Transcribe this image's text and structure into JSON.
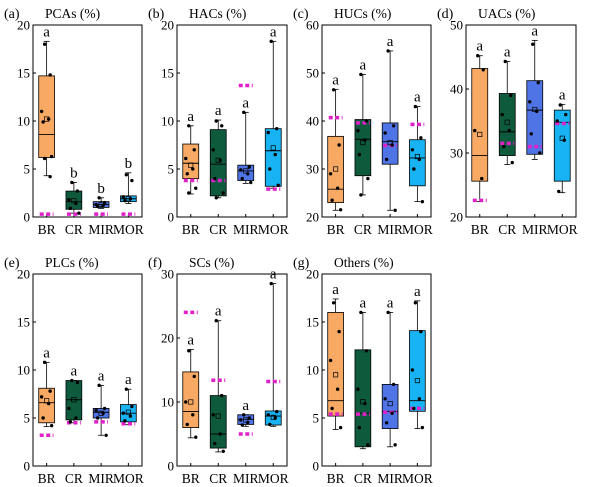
{
  "figure": {
    "title": "Box plots of seven hydrocarbon and carbon-species percentages across four groups"
  },
  "colors": {
    "BR": "#f8a964",
    "CR": "#0d5a3c",
    "MIR": "#4f74e6",
    "MOR": "#18b3f3",
    "mean_line": "#e020c8"
  },
  "chart_data": [
    {
      "type": "box",
      "panel_label": "(a)",
      "title": "PCAs (%)",
      "categories": [
        "BR",
        "CR",
        "MIR",
        "MOR"
      ],
      "ylim": [
        0,
        20
      ],
      "yticks": [
        0,
        5,
        10,
        15,
        20
      ],
      "boxes": [
        {
          "q1": 6.2,
          "median": 8.6,
          "q3": 14.7,
          "whisker_low": 4.3,
          "whisker_high": 18.3,
          "mean": 10.2,
          "mean_line": 0.3,
          "points": [
            18.0,
            14.8,
            11.0,
            10.2,
            9.9,
            6.3,
            6.1,
            4.2
          ],
          "letter": "a"
        },
        {
          "q1": 0.8,
          "median": 1.6,
          "q3": 2.7,
          "whisker_low": 0.4,
          "whisker_high": 3.6,
          "mean": 1.7,
          "mean_line": 0.3,
          "points": [
            3.6,
            2.7,
            1.8,
            1.4,
            0.9,
            0.4
          ],
          "letter": "b"
        },
        {
          "q1": 1.0,
          "median": 1.3,
          "q3": 1.6,
          "whisker_low": 0.9,
          "whisker_high": 2.0,
          "mean": 1.3,
          "mean_line": 0.3,
          "points": [
            2.0,
            1.5,
            1.3,
            1.2,
            1.1
          ],
          "letter": "b"
        },
        {
          "q1": 1.6,
          "median": 1.9,
          "q3": 2.2,
          "whisker_low": 1.4,
          "whisker_high": 4.6,
          "mean": 1.9,
          "mean_line": 0.3,
          "points": [
            4.4,
            3.8,
            2.1,
            1.9,
            1.7
          ],
          "letter": "b"
        }
      ]
    },
    {
      "type": "box",
      "panel_label": "(b)",
      "title": "HACs (%)",
      "categories": [
        "BR",
        "CR",
        "MIR",
        "MOR"
      ],
      "ylim": [
        0,
        20
      ],
      "yticks": [
        0,
        5,
        10,
        15,
        20
      ],
      "boxes": [
        {
          "q1": 4.0,
          "median": 5.6,
          "q3": 7.6,
          "whisker_low": 2.4,
          "whisker_high": 9.5,
          "mean": 5.4,
          "mean_line": 3.8,
          "points": [
            9.5,
            7.0,
            6.1,
            5.0,
            4.5,
            3.0,
            2.5
          ],
          "letter": "a"
        },
        {
          "q1": 2.2,
          "median": 5.5,
          "q3": 9.1,
          "whisker_low": 2.0,
          "whisker_high": 10.1,
          "mean": 5.9,
          "mean_line": 3.8,
          "points": [
            10.0,
            9.5,
            7.0,
            5.9,
            4.0,
            2.5,
            2.0
          ],
          "letter": "a"
        },
        {
          "q1": 3.8,
          "median": 4.8,
          "q3": 5.4,
          "whisker_low": 3.5,
          "whisker_high": 10.9,
          "mean": 4.8,
          "mean_line": 13.7,
          "points": [
            10.9,
            5.2,
            4.9,
            4.5,
            4.0,
            3.6
          ],
          "letter": "a"
        },
        {
          "q1": 3.2,
          "median": 6.9,
          "q3": 9.2,
          "whisker_low": 3.0,
          "whisker_high": 18.3,
          "mean": 7.2,
          "mean_line": 2.9,
          "points": [
            18.3,
            9.2,
            8.8,
            6.5,
            5.0,
            3.3
          ],
          "letter": "a"
        }
      ]
    },
    {
      "type": "box",
      "panel_label": "(c)",
      "title": "HUCs (%)",
      "categories": [
        "BR",
        "CR",
        "MIR",
        "MOR"
      ],
      "ylim": [
        20,
        60
      ],
      "yticks": [
        20,
        30,
        40,
        50,
        60
      ],
      "boxes": [
        {
          "q1": 23.0,
          "median": 25.8,
          "q3": 36.8,
          "whisker_low": 21.4,
          "whisker_high": 46.6,
          "mean": 30.0,
          "mean_line": 40.7,
          "points": [
            46.5,
            35.0,
            29.0,
            26.0,
            23.5,
            21.5
          ],
          "letter": "a"
        },
        {
          "q1": 28.6,
          "median": 36.2,
          "q3": 40.3,
          "whisker_low": 24.6,
          "whisker_high": 49.7,
          "mean": 35.5,
          "mean_line": 39.6,
          "points": [
            49.7,
            40.0,
            38.0,
            36.0,
            33.0,
            28.0,
            24.6
          ],
          "letter": "a"
        },
        {
          "q1": 31.0,
          "median": 35.7,
          "q3": 39.6,
          "whisker_low": 21.4,
          "whisker_high": 54.6,
          "mean": 35.5,
          "mean_line": 34.9,
          "points": [
            54.6,
            39.0,
            37.5,
            35.0,
            32.0,
            21.4
          ],
          "letter": "a"
        },
        {
          "q1": 26.5,
          "median": 32.3,
          "q3": 36.1,
          "whisker_low": 23.2,
          "whisker_high": 43.0,
          "mean": 32.6,
          "mean_line": 39.3,
          "points": [
            43.0,
            36.5,
            34.0,
            32.0,
            30.0,
            23.2
          ],
          "letter": "a"
        }
      ]
    },
    {
      "type": "box",
      "panel_label": "(d)",
      "title": "UACs (%)",
      "categories": [
        "BR",
        "CR",
        "MIR",
        "MOR"
      ],
      "ylim": [
        20,
        50
      ],
      "yticks": [
        20,
        30,
        40,
        50
      ],
      "boxes": [
        {
          "q1": 25.6,
          "median": 29.6,
          "q3": 43.2,
          "whisker_low": 22.4,
          "whisker_high": 45.2,
          "mean": 32.9,
          "mean_line": 22.6,
          "points": [
            45.2,
            43.0,
            33.5,
            26.0
          ],
          "letter": "a"
        },
        {
          "q1": 29.6,
          "median": 33.3,
          "q3": 39.3,
          "whisker_low": 28.2,
          "whisker_high": 44.3,
          "mean": 34.8,
          "mean_line": 31.5,
          "points": [
            44.3,
            39.0,
            36.0,
            33.5,
            31.0,
            28.5
          ],
          "letter": "a"
        },
        {
          "q1": 29.8,
          "median": 36.7,
          "q3": 41.3,
          "whisker_low": 29.0,
          "whisker_high": 47.6,
          "mean": 36.8,
          "mean_line": 31.0,
          "points": [
            47.0,
            41.0,
            38.0,
            36.5,
            33.0,
            30.0
          ],
          "letter": "a"
        },
        {
          "q1": 25.6,
          "median": 34.8,
          "q3": 36.7,
          "whisker_low": 23.8,
          "whisker_high": 37.6,
          "mean": 32.3,
          "mean_line": 34.6,
          "points": [
            37.5,
            36.0,
            35.0,
            32.0,
            24.0
          ],
          "letter": "a"
        }
      ]
    },
    {
      "type": "box",
      "panel_label": "(e)",
      "title": "PLCs (%)",
      "categories": [
        "BR",
        "CR",
        "MIR",
        "MOR"
      ],
      "ylim": [
        0,
        20
      ],
      "yticks": [
        0,
        5,
        10,
        15,
        20
      ],
      "boxes": [
        {
          "q1": 4.5,
          "median": 6.6,
          "q3": 8.1,
          "whisker_low": 4.1,
          "whisker_high": 10.8,
          "mean": 6.8,
          "mean_line": 3.2,
          "points": [
            10.8,
            7.8,
            7.2,
            6.5,
            5.0,
            4.2
          ],
          "letter": "a"
        },
        {
          "q1": 4.8,
          "median": 6.9,
          "q3": 8.9,
          "whisker_low": 4.5,
          "whisker_high": 8.9,
          "mean": 6.9,
          "mean_line": 4.5,
          "points": [
            8.9,
            8.7,
            6.0,
            5.0,
            4.6
          ],
          "letter": "a"
        },
        {
          "q1": 5.0,
          "median": 5.6,
          "q3": 6.0,
          "whisker_low": 3.2,
          "whisker_high": 8.4,
          "mean": 5.5,
          "mean_line": 4.6,
          "points": [
            8.4,
            6.0,
            5.8,
            5.5,
            5.0,
            3.2
          ],
          "letter": "a"
        },
        {
          "q1": 4.6,
          "median": 5.5,
          "q3": 6.4,
          "whisker_low": 4.3,
          "whisker_high": 8.0,
          "mean": 5.6,
          "mean_line": 4.4,
          "points": [
            8.0,
            6.2,
            5.5,
            5.2,
            4.7
          ],
          "letter": "a"
        }
      ]
    },
    {
      "type": "box",
      "panel_label": "(f)",
      "title": "SCs (%)",
      "categories": [
        "BR",
        "CR",
        "MIR",
        "MOR"
      ],
      "ylim": [
        0,
        30
      ],
      "yticks": [
        0,
        10,
        20,
        30
      ],
      "boxes": [
        {
          "q1": 6.0,
          "median": 8.5,
          "q3": 14.7,
          "whisker_low": 4.4,
          "whisker_high": 18.2,
          "mean": 10.0,
          "mean_line": 24.0,
          "points": [
            18.0,
            14.0,
            10.0,
            8.0,
            6.5,
            4.5
          ],
          "letter": "a"
        },
        {
          "q1": 2.8,
          "median": 5.0,
          "q3": 11.0,
          "whisker_low": 2.2,
          "whisker_high": 22.7,
          "mean": 7.8,
          "mean_line": 13.4,
          "points": [
            22.7,
            11.0,
            8.0,
            5.0,
            3.5,
            2.3
          ],
          "letter": "a"
        },
        {
          "q1": 6.5,
          "median": 7.3,
          "q3": 8.0,
          "whisker_low": 6.2,
          "whisker_high": 8.0,
          "mean": 7.2,
          "mean_line": 5.0,
          "points": [
            8.0,
            7.5,
            7.2,
            6.8,
            6.4
          ],
          "letter": "a"
        },
        {
          "q1": 6.4,
          "median": 7.8,
          "q3": 8.6,
          "whisker_low": 6.2,
          "whisker_high": 28.5,
          "mean": 7.6,
          "mean_line": 13.2,
          "points": [
            28.5,
            8.5,
            8.0,
            7.5,
            6.5
          ],
          "letter": "a"
        }
      ]
    },
    {
      "type": "box",
      "panel_label": "(g)",
      "title": "Others (%)",
      "categories": [
        "BR",
        "CR",
        "MIR",
        "MOR"
      ],
      "ylim": [
        0,
        20
      ],
      "yticks": [
        0,
        5,
        10,
        15,
        20
      ],
      "boxes": [
        {
          "q1": 5.2,
          "median": 6.8,
          "q3": 16.0,
          "whisker_low": 3.8,
          "whisker_high": 17.4,
          "mean": 9.5,
          "mean_line": 5.4,
          "points": [
            17.0,
            14.0,
            11.0,
            8.0,
            6.0,
            4.0
          ],
          "letter": "a"
        },
        {
          "q1": 2.0,
          "median": 5.5,
          "q3": 12.1,
          "whisker_low": 1.8,
          "whisker_high": 16.0,
          "mean": 6.7,
          "mean_line": 5.4,
          "points": [
            16.0,
            12.0,
            8.0,
            6.5,
            4.0,
            2.2
          ],
          "letter": "a"
        },
        {
          "q1": 3.9,
          "median": 5.7,
          "q3": 8.5,
          "whisker_low": 2.0,
          "whisker_high": 16.0,
          "mean": 6.5,
          "mean_line": 5.6,
          "points": [
            16.0,
            8.5,
            7.0,
            5.5,
            4.5,
            2.2
          ],
          "letter": "a"
        },
        {
          "q1": 5.7,
          "median": 6.8,
          "q3": 14.1,
          "whisker_low": 3.9,
          "whisker_high": 17.2,
          "mean": 8.9,
          "mean_line": 6.0,
          "points": [
            17.0,
            14.0,
            10.0,
            7.0,
            6.0,
            4.0
          ],
          "letter": "a"
        }
      ]
    }
  ]
}
